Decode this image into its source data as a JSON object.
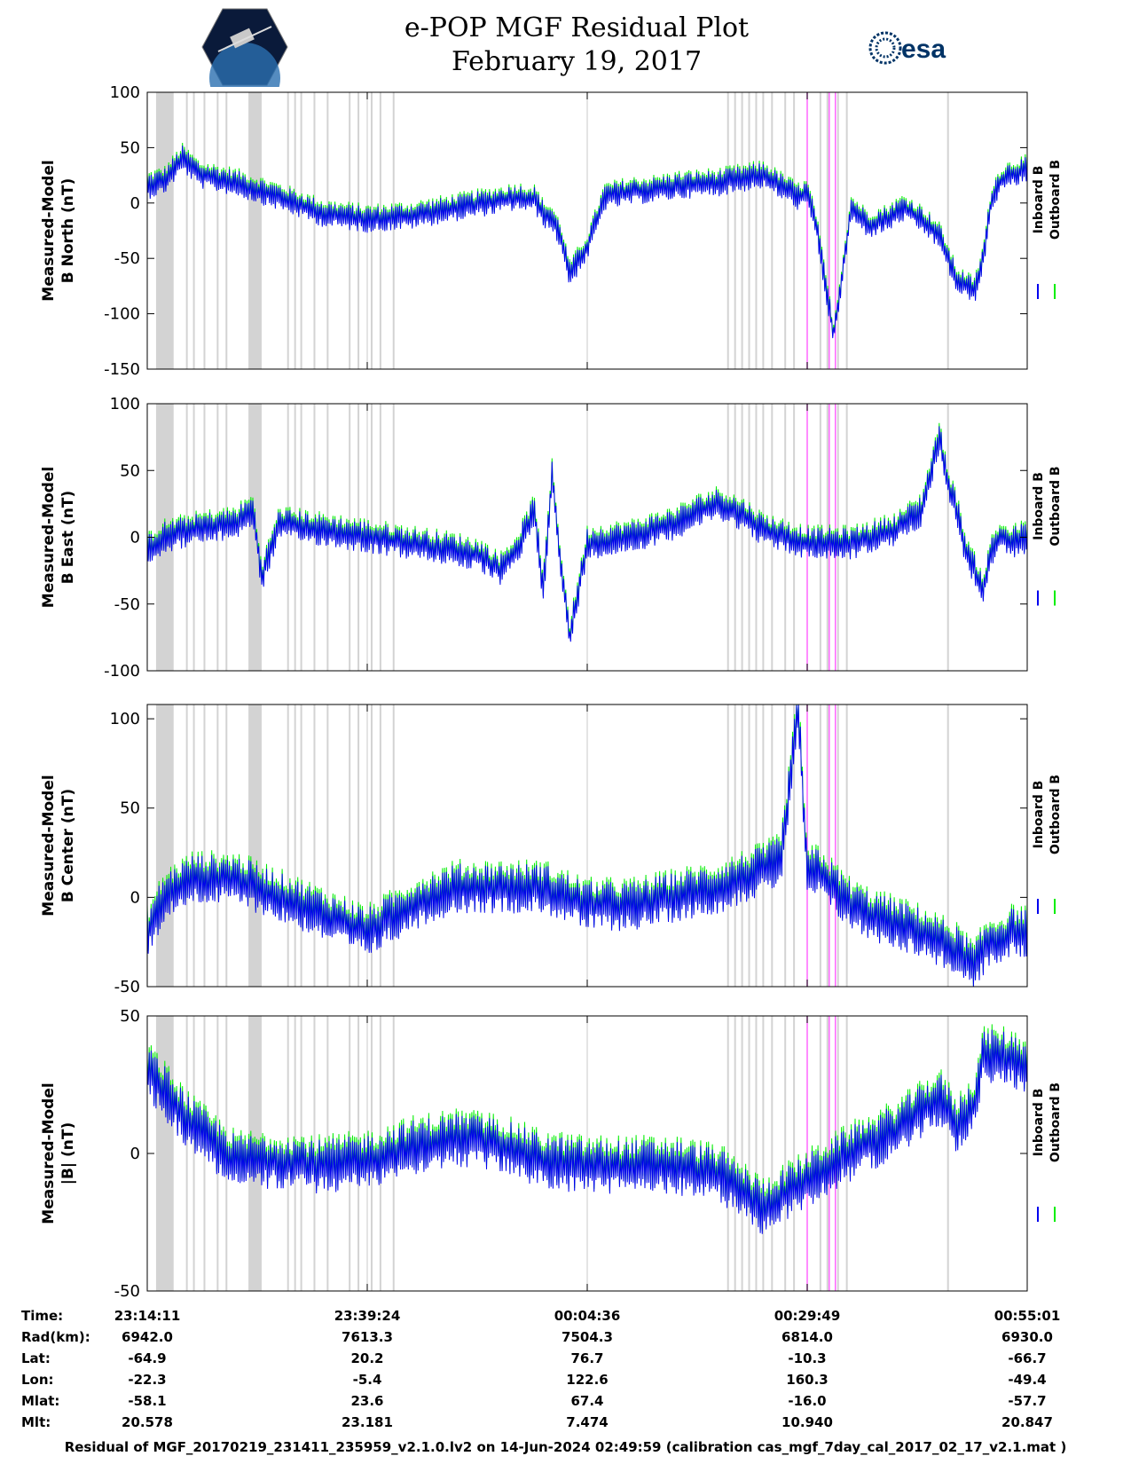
{
  "title": "e-POP MGF Residual Plot",
  "subtitle": "February 19, 2017",
  "logos": {
    "left": "cassiope-mission-logo",
    "right_text": "esa"
  },
  "colors": {
    "inboard": "#0000ee",
    "outboard": "#00ee00",
    "flag_gray": "#d3d3d3",
    "pink_marker": "#ff66ff"
  },
  "chart_data": [
    {
      "type": "line",
      "ylabel_line1": "Measured-Model",
      "ylabel_line2": "B North (nT)",
      "ylim": [
        -150,
        100
      ],
      "yticks": [
        100,
        50,
        0,
        -50,
        -100,
        -150
      ],
      "grid": true,
      "series": [
        {
          "name": "Inboard B",
          "color": "#0000ee"
        },
        {
          "name": "Outboard B",
          "color": "#00ee00"
        }
      ],
      "x_minutes": [
        0,
        2,
        4,
        6,
        10,
        15,
        20,
        25,
        30,
        35,
        40,
        42,
        44,
        45,
        46,
        47,
        48,
        50,
        52,
        55,
        58,
        60,
        65,
        70,
        71,
        73,
        74,
        75,
        76,
        78,
        80,
        82,
        84,
        85,
        86,
        88,
        90,
        92,
        94,
        95,
        96,
        97,
        98,
        100
      ],
      "values": [
        15,
        20,
        40,
        25,
        18,
        5,
        -10,
        -15,
        -12,
        -5,
        2,
        5,
        3,
        -10,
        -15,
        -30,
        -65,
        -40,
        5,
        10,
        12,
        15,
        18,
        25,
        20,
        10,
        5,
        8,
        -20,
        -120,
        -5,
        -20,
        -15,
        -10,
        -5,
        -15,
        -30,
        -70,
        -80,
        -50,
        5,
        20,
        25,
        30
      ],
      "band_halfwidth": 12
    },
    {
      "type": "line",
      "ylabel_line1": "Measured-Model",
      "ylabel_line2": "B East (nT)",
      "ylim": [
        -100,
        100
      ],
      "yticks": [
        100,
        50,
        0,
        -50,
        -100
      ],
      "grid": true,
      "series": [
        {
          "name": "Inboard B",
          "color": "#0000ee"
        },
        {
          "name": "Outboard B",
          "color": "#00ee00"
        }
      ],
      "x_minutes": [
        0,
        2,
        5,
        10,
        12,
        13,
        15,
        20,
        25,
        30,
        35,
        38,
        40,
        42,
        44,
        45,
        46,
        47,
        48,
        50,
        55,
        60,
        63,
        65,
        68,
        70,
        75,
        80,
        85,
        88,
        90,
        91,
        92,
        93,
        95,
        96,
        97,
        98,
        100
      ],
      "values": [
        -10,
        0,
        5,
        10,
        20,
        -30,
        10,
        5,
        0,
        -5,
        -10,
        -15,
        -25,
        -10,
        20,
        -40,
        45,
        -20,
        -75,
        -5,
        0,
        10,
        20,
        25,
        15,
        5,
        -5,
        -5,
        5,
        20,
        75,
        40,
        20,
        -10,
        -40,
        -10,
        0,
        -5,
        0
      ],
      "band_halfwidth": 12
    },
    {
      "type": "line",
      "ylabel_line1": "Measured-Model",
      "ylabel_line2": "B Center (nT)",
      "ylim": [
        -50,
        108
      ],
      "yticks": [
        100,
        50,
        0,
        -50
      ],
      "grid": true,
      "series": [
        {
          "name": "Inboard B",
          "color": "#0000ee"
        },
        {
          "name": "Outboard B",
          "color": "#00ee00"
        }
      ],
      "x_minutes": [
        0,
        2,
        5,
        10,
        15,
        20,
        25,
        30,
        35,
        40,
        45,
        50,
        55,
        60,
        65,
        70,
        72,
        74,
        75,
        76,
        78,
        80,
        82,
        85,
        88,
        90,
        92,
        94,
        95,
        96,
        97,
        98,
        100
      ],
      "values": [
        -20,
        0,
        10,
        10,
        0,
        -10,
        -20,
        -5,
        5,
        5,
        5,
        -5,
        -5,
        0,
        5,
        15,
        20,
        105,
        10,
        15,
        5,
        -5,
        -10,
        -15,
        -20,
        -25,
        -30,
        -40,
        -30,
        -25,
        -25,
        -20,
        -20
      ],
      "band_halfwidth": 14
    },
    {
      "type": "line",
      "ylabel_line1": "Measured-Model",
      "ylabel_line2": "|B| (nT)",
      "ylim": [
        -50,
        50
      ],
      "yticks": [
        50,
        0,
        -50
      ],
      "grid": true,
      "series": [
        {
          "name": "Inboard B",
          "color": "#0000ee"
        },
        {
          "name": "Outboard B",
          "color": "#00ee00"
        }
      ],
      "x_minutes": [
        0,
        5,
        10,
        15,
        20,
        25,
        30,
        35,
        40,
        45,
        50,
        55,
        60,
        65,
        70,
        75,
        80,
        85,
        88,
        90,
        92,
        94,
        95,
        97,
        98,
        100
      ],
      "values": [
        30,
        10,
        -3,
        -3,
        -5,
        -3,
        2,
        5,
        3,
        -3,
        -5,
        -5,
        -5,
        -8,
        -20,
        -10,
        0,
        8,
        15,
        20,
        10,
        18,
        35,
        35,
        34,
        32
      ],
      "band_halfwidth": 10
    }
  ],
  "legend": {
    "inboard": "Inboard B",
    "outboard": "Outboard B"
  },
  "ephemeris": {
    "labels": [
      "Time:",
      "Rad(km):",
      "Lat:",
      "Lon:",
      "Mlat:",
      "Mlt:"
    ],
    "columns": [
      [
        "23:14:11",
        "6942.0",
        "-64.9",
        "-22.3",
        "-58.1",
        "20.578"
      ],
      [
        "23:39:24",
        "7613.3",
        "20.2",
        "-5.4",
        "23.6",
        "23.181"
      ],
      [
        "00:04:36",
        "7504.3",
        "76.7",
        "122.6",
        "67.4",
        "7.474"
      ],
      [
        "00:29:49",
        "6814.0",
        "-10.3",
        "160.3",
        "-16.0",
        "10.940"
      ],
      [
        "00:55:01",
        "6930.0",
        "-66.7",
        "-49.4",
        "-57.7",
        "20.847"
      ]
    ]
  },
  "footer": "Residual of MGF_20170219_231411_235959_v2.1.0.lv2 on 14-Jun-2024 02:49:59 (calibration cas_mgf_7day_cal_2017_02_17_v2.1.mat )"
}
